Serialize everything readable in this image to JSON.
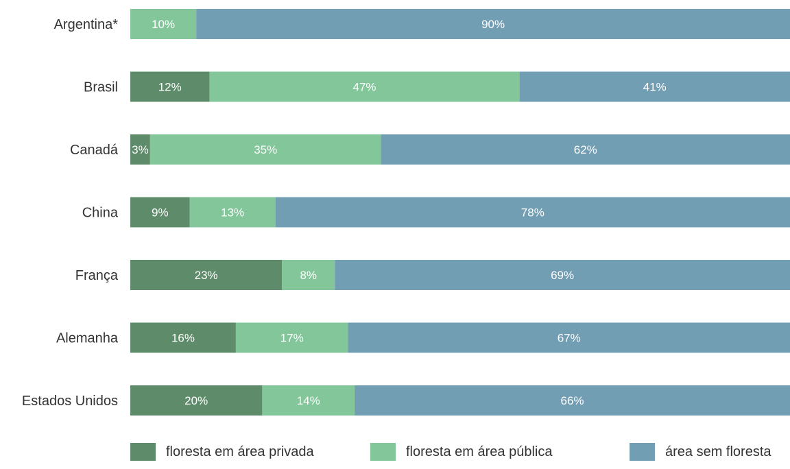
{
  "chart_data": {
    "type": "bar",
    "orientation": "horizontal",
    "stacked": true,
    "categories": [
      "Argentina*",
      "Brasil",
      "Canadá",
      "China",
      "França",
      "Alemanha",
      "Estados Unidos"
    ],
    "series": [
      {
        "name": "floresta em área privada",
        "color": "#5e8c6a",
        "values": [
          0,
          12,
          3,
          9,
          23,
          16,
          20
        ]
      },
      {
        "name": "floresta em área pública",
        "color": "#82c69a",
        "values": [
          10,
          47,
          35,
          13,
          8,
          17,
          14
        ]
      },
      {
        "name": "área sem floresta",
        "color": "#729eb4",
        "values": [
          90,
          41,
          62,
          78,
          69,
          67,
          66
        ]
      }
    ],
    "value_suffix": "%",
    "xlim": [
      0,
      100
    ],
    "grid": false,
    "legend_position": "bottom"
  }
}
